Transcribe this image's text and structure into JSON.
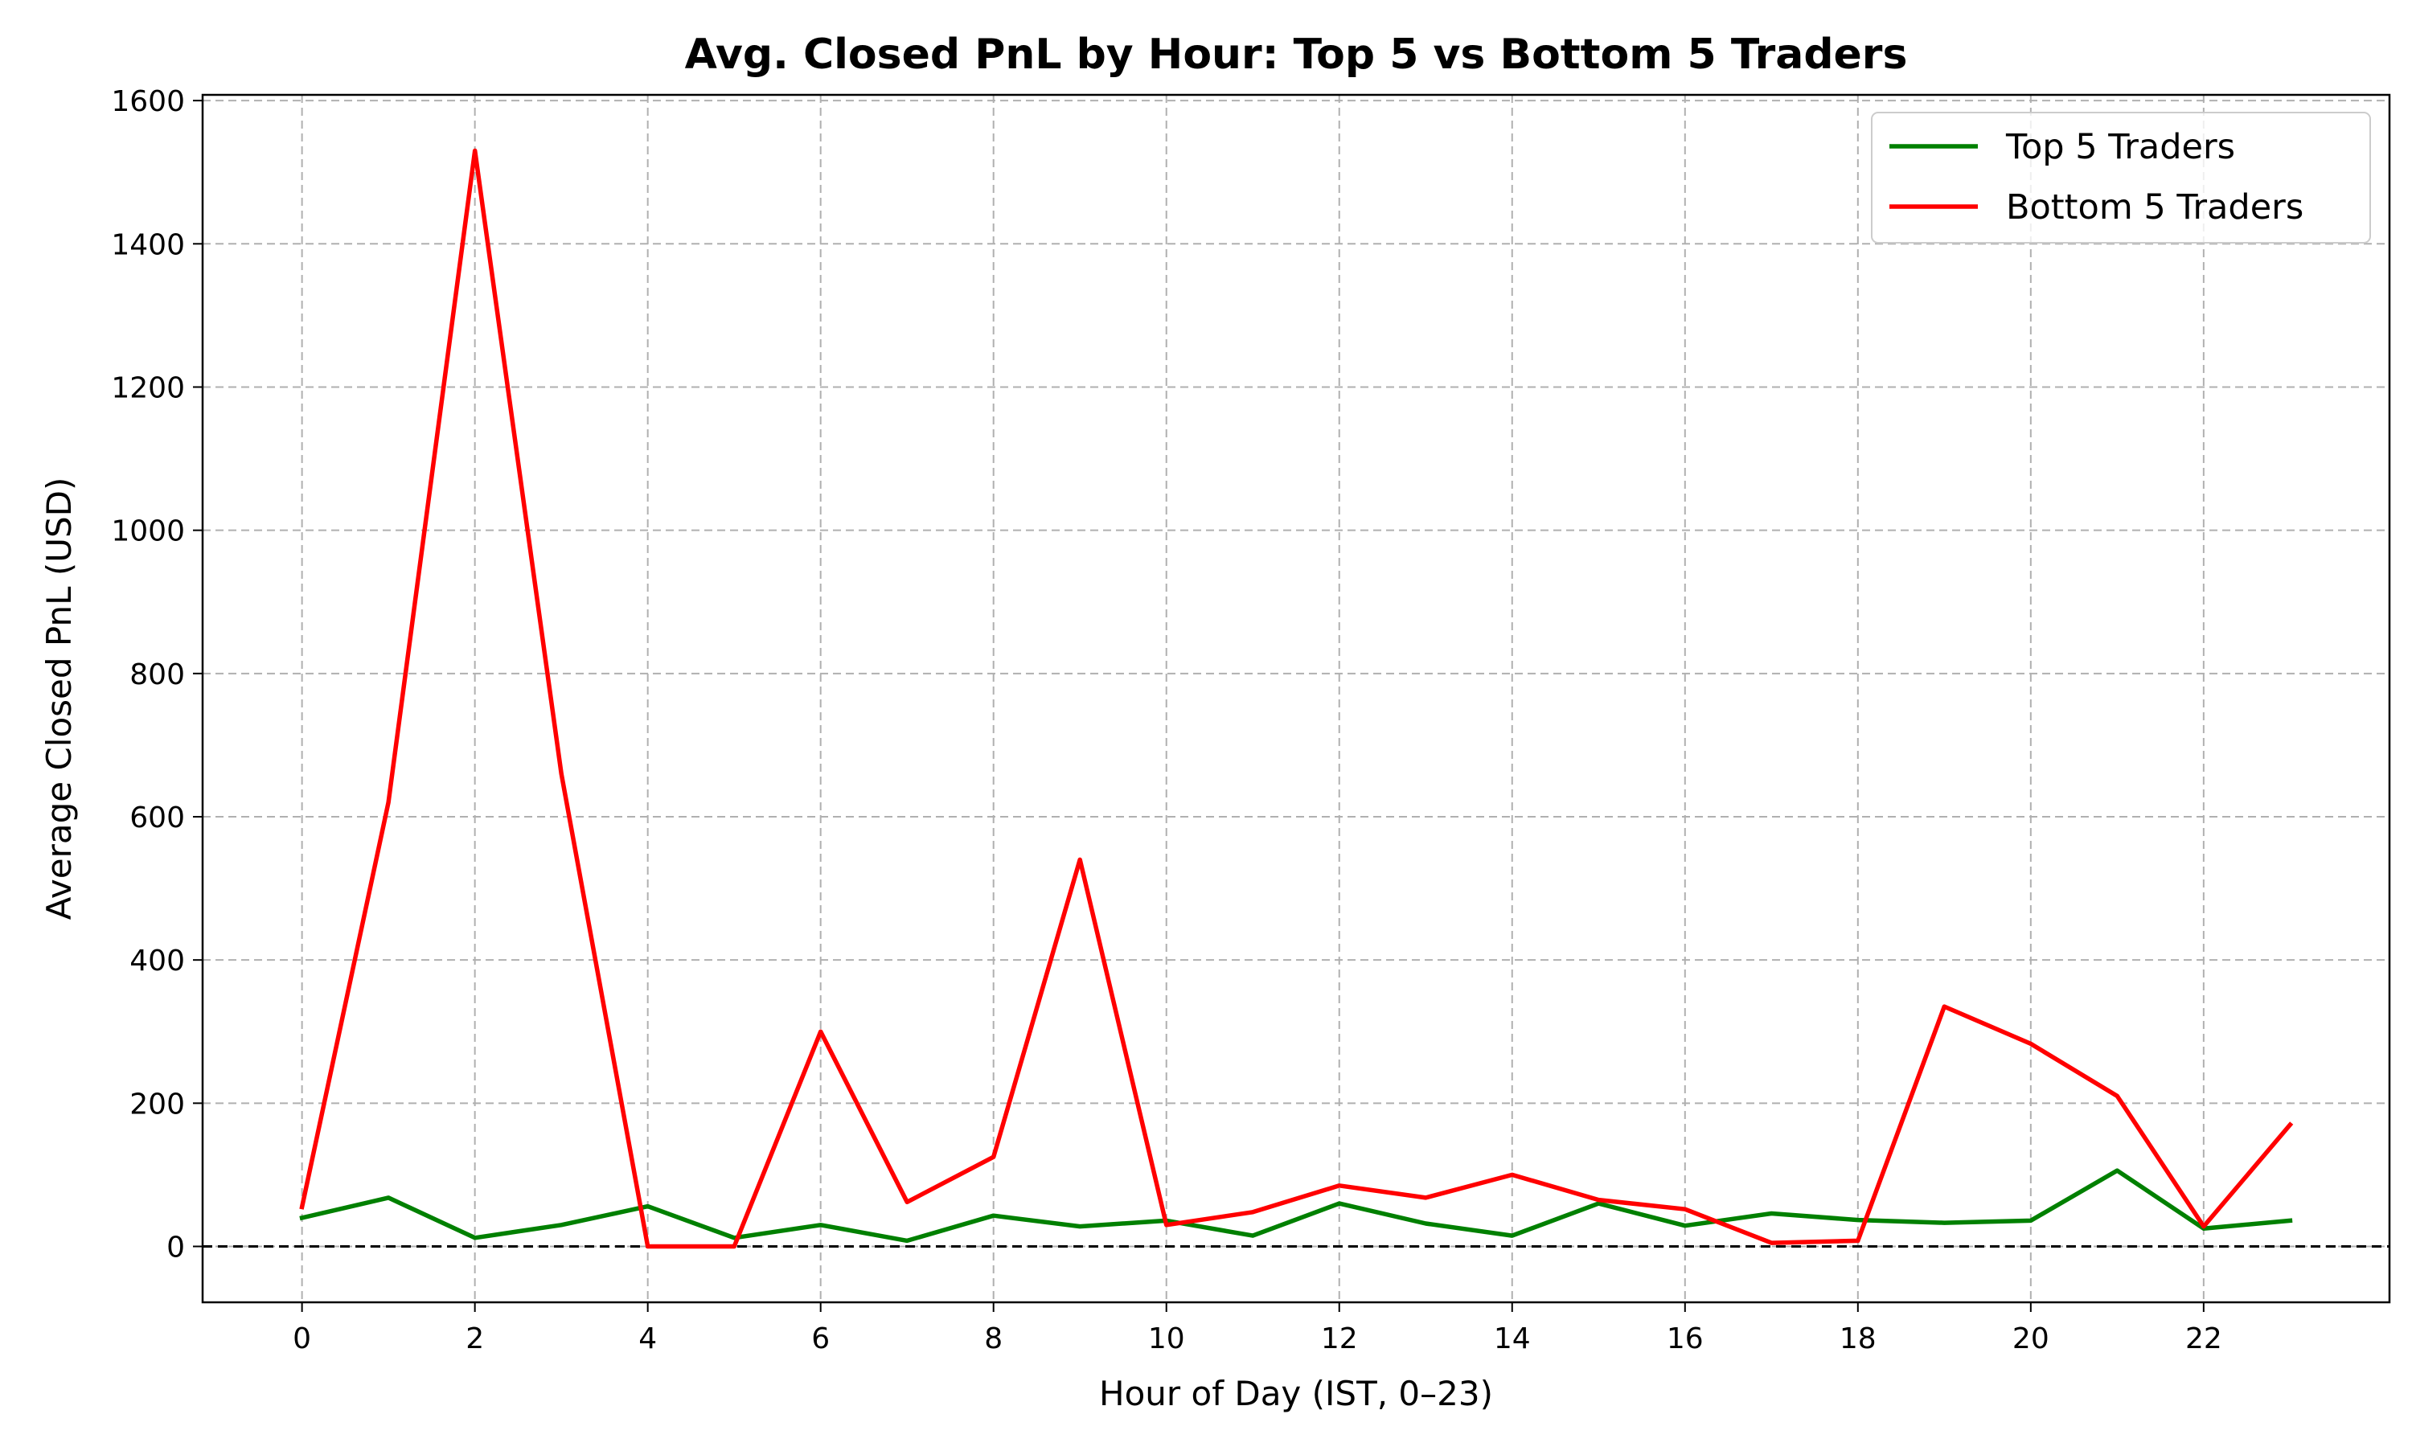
{
  "chart_data": {
    "type": "line",
    "title": "Avg. Closed PnL by Hour: Top 5 vs Bottom 5 Traders",
    "xlabel": "Hour of Day (IST, 0–23)",
    "ylabel": "Average Closed PnL (USD)",
    "xlim": [
      -1.15,
      24.15
    ],
    "ylim": [
      -78,
      1608
    ],
    "x_ticks": [
      0,
      2,
      4,
      6,
      8,
      10,
      12,
      14,
      16,
      18,
      20,
      22
    ],
    "y_ticks": [
      0,
      200,
      400,
      600,
      800,
      1000,
      1200,
      1400,
      1600
    ],
    "grid": true,
    "zero_line": {
      "y": 0,
      "style": "dashed",
      "color": "#000000"
    },
    "legend_position": "top-right",
    "x": [
      0,
      1,
      2,
      3,
      4,
      5,
      6,
      7,
      8,
      9,
      10,
      11,
      12,
      13,
      14,
      15,
      16,
      17,
      18,
      19,
      20,
      21,
      22,
      23
    ],
    "series": [
      {
        "name": "Top 5 Traders",
        "color": "#008000",
        "values": [
          40,
          68,
          12,
          30,
          56,
          12,
          30,
          8,
          43,
          28,
          36,
          15,
          60,
          32,
          15,
          60,
          29,
          46,
          37,
          33,
          36,
          106,
          25,
          36
        ]
      },
      {
        "name": "Bottom 5 Traders",
        "color": "#ff0000",
        "values": [
          55,
          620,
          1530,
          660,
          0,
          0,
          300,
          62,
          125,
          540,
          30,
          48,
          85,
          68,
          100,
          65,
          52,
          5,
          8,
          335,
          283,
          210,
          28,
          170
        ]
      }
    ]
  }
}
